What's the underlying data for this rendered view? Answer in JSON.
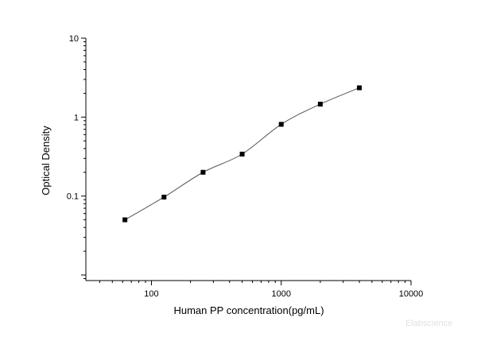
{
  "chart_data": {
    "type": "scatter",
    "xlabel": "Human PP concentration(pg/mL)",
    "ylabel": "Optical Density",
    "x_scale": "log",
    "y_scale": "log",
    "xlim": [
      31.25,
      10000
    ],
    "ylim": [
      0.0085,
      10
    ],
    "x_ticks": [
      {
        "value": 100,
        "label": "100"
      },
      {
        "value": 1000,
        "label": "1000"
      },
      {
        "value": 10000,
        "label": "10000"
      }
    ],
    "y_ticks": [
      {
        "value": 0.1,
        "label": "0.1"
      },
      {
        "value": 1,
        "label": "1"
      },
      {
        "value": 10,
        "label": "10"
      }
    ],
    "grid": false,
    "legend": "none",
    "series": [
      {
        "x": [
          62.5,
          125,
          250,
          500,
          1000,
          2000,
          4000
        ],
        "y": [
          0.05,
          0.097,
          0.2,
          0.34,
          0.81,
          1.46,
          2.35
        ]
      }
    ],
    "fit_curve": true,
    "marker_color": "#000000",
    "line_color": "#555555"
  },
  "watermark": "Elabscience"
}
